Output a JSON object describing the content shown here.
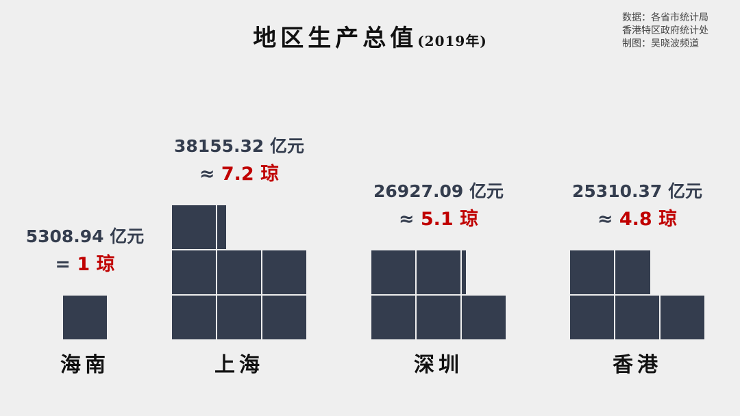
{
  "title": {
    "main": "地区生产总值",
    "sub": "(2019年)"
  },
  "source": [
    "数据：各省市统计局",
    "香港特区政府统计处",
    "制图：吴晓波频道"
  ],
  "colors": {
    "block": "#343d4e",
    "highlight": "#c00000",
    "background": "#efefef"
  },
  "chart_data": {
    "type": "pictograph",
    "unit": "亿元",
    "base_unit": "琼",
    "series": [
      {
        "city": "海南",
        "value_text": "5308.94 亿元",
        "value": 5308.94,
        "ratio_symbol": "=",
        "ratio_text": "1 琼",
        "ratio": 1
      },
      {
        "city": "上海",
        "value_text": "38155.32 亿元",
        "value": 38155.32,
        "ratio_symbol": "≈",
        "ratio_text": "7.2 琼",
        "ratio": 7.2
      },
      {
        "city": "深圳",
        "value_text": "26927.09 亿元",
        "value": 26927.09,
        "ratio_symbol": "≈",
        "ratio_text": "5.1 琼",
        "ratio": 5.1
      },
      {
        "city": "香港",
        "value_text": "25310.37 亿元",
        "value": 25310.37,
        "ratio_symbol": "≈",
        "ratio_text": "4.8 琼",
        "ratio": 4.8
      }
    ]
  }
}
